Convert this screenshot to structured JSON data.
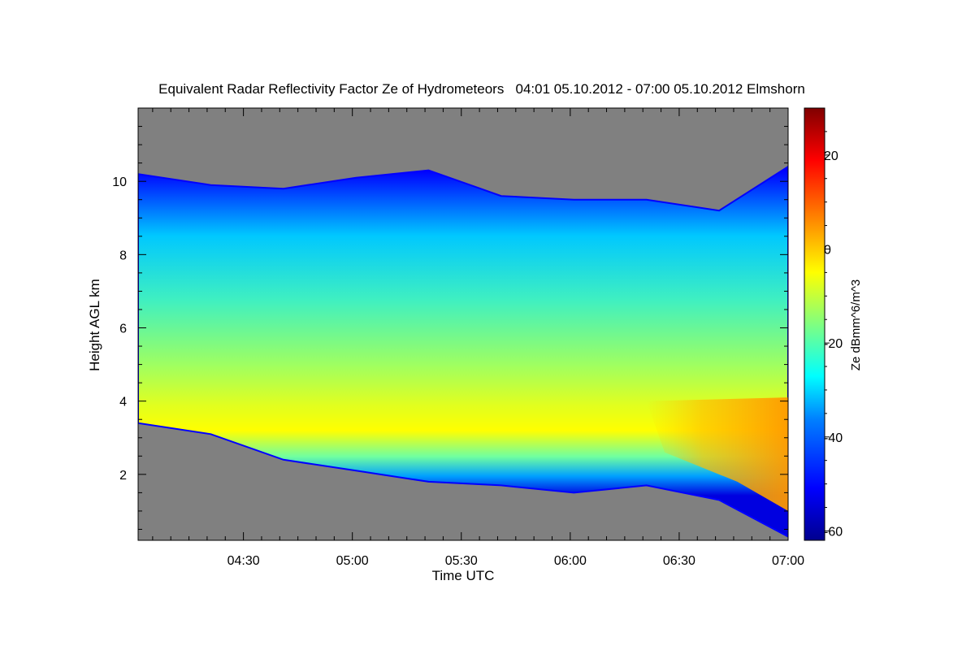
{
  "chart_data": {
    "type": "heatmap",
    "title": "Equivalent Radar Reflectivity Factor Ze of Hydrometeors   04:01 05.10.2012 - 07:00 05.10.2012 Elmshorn",
    "xlabel": "Time UTC",
    "ylabel": "Height AGL km",
    "colorbar_label": "Ze dBmm^6/m^3",
    "xlim": [
      "04:01",
      "07:00"
    ],
    "ylim": [
      0.2,
      12.0
    ],
    "x_ticks": [
      "04:30",
      "05:00",
      "05:30",
      "06:00",
      "06:30",
      "07:00"
    ],
    "x_tick_minutes": [
      29,
      59,
      89,
      119,
      149,
      179
    ],
    "y_ticks": [
      2,
      4,
      6,
      8,
      10
    ],
    "colorbar_range": [
      -62,
      30
    ],
    "colorbar_ticks": [
      20,
      0,
      -20,
      -40,
      -60
    ],
    "background_color": "#808080",
    "cloud_layer": {
      "time_minutes": [
        0,
        20,
        40,
        60,
        80,
        100,
        120,
        140,
        160,
        179
      ],
      "top_km": [
        10.2,
        9.9,
        9.8,
        10.1,
        10.3,
        9.6,
        9.5,
        9.5,
        9.2,
        10.4
      ],
      "base_km": [
        3.4,
        3.1,
        2.4,
        2.1,
        1.8,
        1.7,
        1.5,
        1.7,
        1.3,
        0.3
      ],
      "max_reflectivity_height_km": [
        3.8,
        3.9,
        4.1,
        4.2,
        4.2,
        3.7,
        3.5,
        3.3,
        3.2,
        3.0
      ],
      "max_reflectivity_dbz": [
        -12,
        -10,
        -8,
        -7,
        -6,
        -7,
        -6,
        -5,
        -2,
        2
      ]
    },
    "colormap": [
      "#00008f",
      "#0000ff",
      "#0080ff",
      "#00ffff",
      "#80ff80",
      "#ffff00",
      "#ff8000",
      "#ff0000",
      "#800000"
    ]
  }
}
